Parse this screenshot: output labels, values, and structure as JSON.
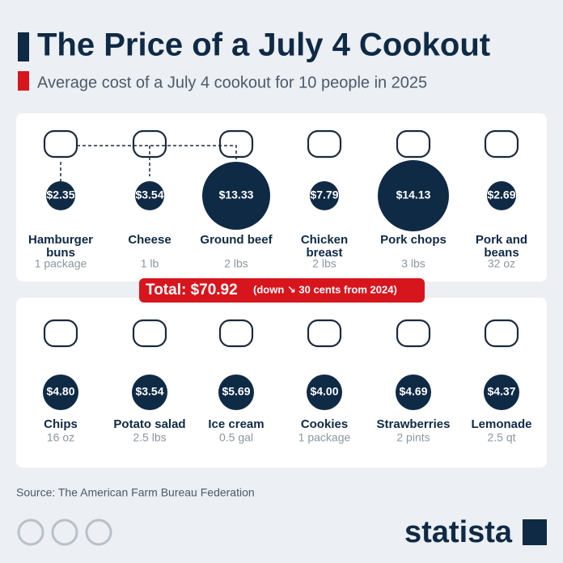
{
  "header": {
    "title": "The Price of a July 4 Cookout",
    "subtitle": "Average cost of a July 4 cookout for 10 people in 2025"
  },
  "rows": [
    [
      {
        "name": [
          "Hamburger",
          "buns"
        ],
        "amount": "1 package",
        "price": "$2.35"
      },
      {
        "name": [
          "Cheese"
        ],
        "amount": "1 lb",
        "price": "$3.54"
      },
      {
        "name": [
          "Ground beef"
        ],
        "amount": "2 lbs",
        "price": "$13.33"
      },
      {
        "name": [
          "Chicken",
          "breast"
        ],
        "amount": "2 lbs",
        "price": "$7.79"
      },
      {
        "name": [
          "Pork chops"
        ],
        "amount": "3 lbs",
        "price": "$14.13"
      },
      {
        "name": [
          "Pork and",
          "beans"
        ],
        "amount": "32 oz",
        "price": "$2.69"
      }
    ],
    [
      {
        "name": [
          "Chips"
        ],
        "amount": "16 oz",
        "price": "$4.80"
      },
      {
        "name": [
          "Potato salad"
        ],
        "amount": "2.5 lbs",
        "price": "$3.54"
      },
      {
        "name": [
          "Ice cream"
        ],
        "amount": "0.5 gal",
        "price": "$5.69"
      },
      {
        "name": [
          "Cookies"
        ],
        "amount": "1 package",
        "price": "$4.00"
      },
      {
        "name": [
          "Strawberries"
        ],
        "amount": "2 pints",
        "price": "$4.69"
      },
      {
        "name": [
          "Lemonade"
        ],
        "amount": "2.5 qt",
        "price": "$4.37"
      }
    ]
  ],
  "total": {
    "label": "Total: $70.92",
    "note": "(down ↘ 30 cents from 2024)"
  },
  "footer": {
    "source": "Source: The American Farm Bureau Federation",
    "brand": "statista"
  }
}
